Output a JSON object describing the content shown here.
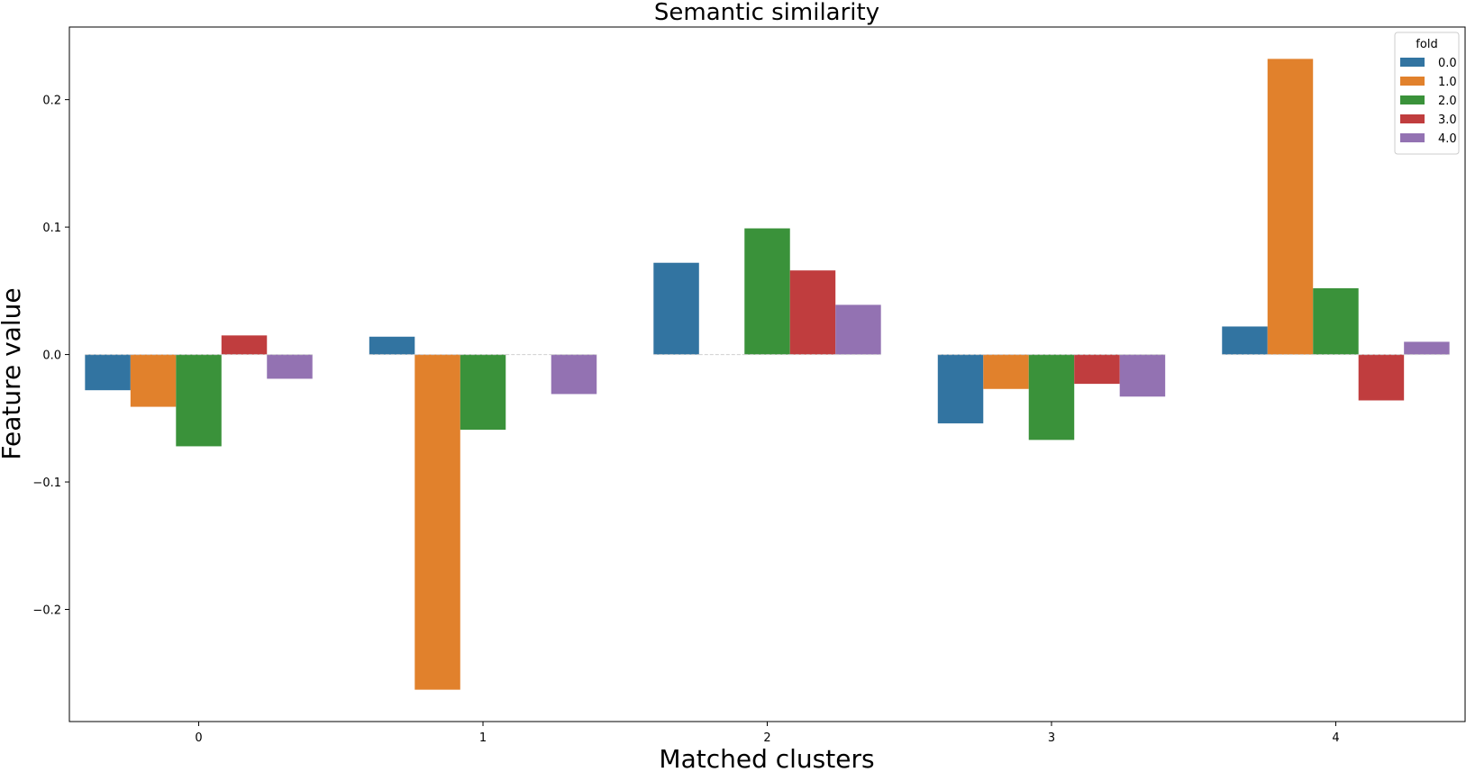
{
  "chart_data": {
    "type": "bar",
    "title": "Semantic similarity",
    "xlabel": "Matched clusters",
    "ylabel": "Feature value",
    "categories": [
      "0",
      "1",
      "2",
      "3",
      "4"
    ],
    "ylim": [
      -0.288,
      0.257
    ],
    "yticks": [
      -0.2,
      -0.1,
      0.0,
      0.1,
      0.2
    ],
    "ytick_labels": [
      "−0.2",
      "−0.1",
      "0.0",
      "0.1",
      "0.2"
    ],
    "grid": false,
    "legend": {
      "title": "fold",
      "position": "top-right"
    },
    "series": [
      {
        "name": "0.0",
        "color": "#3274a1",
        "values": [
          -0.028,
          0.014,
          0.072,
          -0.054,
          0.022
        ]
      },
      {
        "name": "1.0",
        "color": "#e1812c",
        "values": [
          -0.041,
          -0.263,
          0.0,
          -0.027,
          0.232
        ]
      },
      {
        "name": "2.0",
        "color": "#3a923a",
        "values": [
          -0.072,
          -0.059,
          0.099,
          -0.067,
          0.052
        ]
      },
      {
        "name": "3.0",
        "color": "#c03d3e",
        "values": [
          0.015,
          0.0,
          0.066,
          -0.023,
          -0.036
        ]
      },
      {
        "name": "4.0",
        "color": "#9372b2",
        "values": [
          -0.019,
          -0.031,
          0.039,
          -0.033,
          0.01
        ]
      }
    ]
  }
}
